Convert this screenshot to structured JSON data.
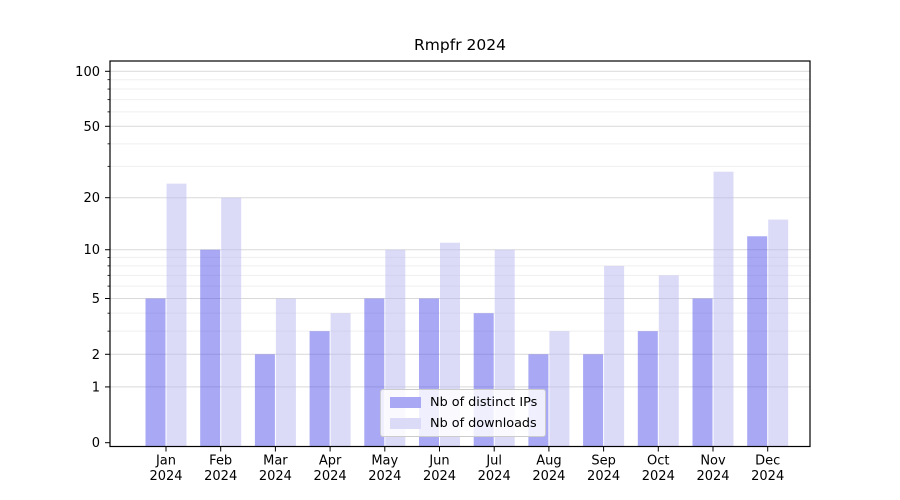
{
  "page": {
    "background": "#ffffff"
  },
  "chart_data": {
    "type": "bar",
    "title": "Rmpfr 2024",
    "categories": [
      "Jan",
      "Feb",
      "Mar",
      "Apr",
      "May",
      "Jun",
      "Jul",
      "Aug",
      "Sep",
      "Oct",
      "Nov",
      "Dec"
    ],
    "x_tick_second_line": "2024",
    "series": [
      {
        "name": "Nb of distinct IPs",
        "color": "rgba(81,81,235,0.5)",
        "solid_color": "#a8a8f5",
        "values": [
          5,
          10,
          2,
          3,
          5,
          5,
          4,
          2,
          2,
          3,
          5,
          12
        ]
      },
      {
        "name": "Nb of downloads",
        "color": "rgba(183,183,242,0.5)",
        "solid_color": "#dbdbf8",
        "values": [
          24,
          20,
          5,
          4,
          10,
          11,
          10,
          3,
          8,
          7,
          28,
          15
        ]
      }
    ],
    "y_axis": {
      "scale": "log1p",
      "tick_values": [
        100,
        50,
        20,
        10,
        5,
        2,
        1,
        0
      ],
      "tick_labels": [
        "100",
        "50",
        "20",
        "10",
        "5",
        "2",
        "1",
        "0"
      ],
      "minor_gridline_values": [
        3,
        4,
        6,
        7,
        8,
        9,
        30,
        40,
        60,
        70,
        80,
        90
      ],
      "ylim": [
        0,
        115
      ]
    },
    "grid": {
      "horizontal": true,
      "major_color": "#d9d9d9",
      "minor_color": "#efefef"
    },
    "legend": {
      "position": "lower center inside plot",
      "items": [
        "Nb of distinct IPs",
        "Nb of downloads"
      ]
    },
    "axis_color": "#000000",
    "xlabel": "",
    "ylabel": ""
  }
}
